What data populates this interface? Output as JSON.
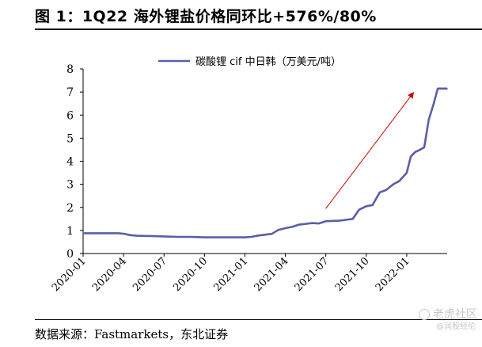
{
  "figure": {
    "title": "图 1：1Q22 海外锂盐价格同环比+576%/80%",
    "source": "数据来源：Fastmarkets，东北证券",
    "watermark": "老虎社区",
    "watermark_sub": "@润股经伦"
  },
  "colors": {
    "series_line": "#5b5ea6",
    "arrow": "#cc0000",
    "axis": "#000000"
  },
  "chart_data": {
    "type": "line",
    "title": "",
    "xlabel": "",
    "ylabel": "",
    "ylim": [
      0,
      8
    ],
    "yticks": [
      "0",
      "1",
      "2",
      "3",
      "4",
      "5",
      "6",
      "7",
      "8"
    ],
    "xlim": [
      "2020-01",
      "2022-04"
    ],
    "xticks": [
      "2020-01",
      "2020-04",
      "2020-07",
      "2020-10",
      "2021-01",
      "2021-04",
      "2021-07",
      "2021-10",
      "2022-01"
    ],
    "legend": {
      "position": "top-center",
      "label": "碳酸锂 cif 中日韩（万美元/吨）"
    },
    "grid": false,
    "series": [
      {
        "name": "碳酸锂 cif 中日韩（万美元/吨）",
        "x": [
          "2020-01",
          "2020-02",
          "2020-03",
          "2020-03-20",
          "2020-04",
          "2020-04-15",
          "2020-05",
          "2020-06",
          "2020-07",
          "2020-08",
          "2020-09",
          "2020-10",
          "2020-11",
          "2020-12",
          "2021-01",
          "2021-01-15",
          "2021-02",
          "2021-03",
          "2021-03-15",
          "2021-04",
          "2021-04-15",
          "2021-05",
          "2021-06",
          "2021-06-15",
          "2021-07",
          "2021-08",
          "2021-08-15",
          "2021-09",
          "2021-09-15",
          "2021-10",
          "2021-10-15",
          "2021-11",
          "2021-11-15",
          "2021-12",
          "2021-12-15",
          "2022-01",
          "2022-01-10",
          "2022-01-20",
          "2022-02",
          "2022-02-10",
          "2022-02-20",
          "2022-03",
          "2022-03-10",
          "2022-03-20",
          "2022-04"
        ],
        "y": [
          0.88,
          0.88,
          0.88,
          0.88,
          0.86,
          0.8,
          0.77,
          0.76,
          0.74,
          0.72,
          0.72,
          0.7,
          0.7,
          0.7,
          0.7,
          0.72,
          0.78,
          0.85,
          1.02,
          1.1,
          1.15,
          1.25,
          1.32,
          1.3,
          1.4,
          1.42,
          1.46,
          1.5,
          1.9,
          2.05,
          2.1,
          2.65,
          2.75,
          3.0,
          3.15,
          3.5,
          4.2,
          4.4,
          4.5,
          4.6,
          5.8,
          6.5,
          7.15,
          7.15,
          7.15
        ]
      }
    ],
    "annotations": [
      {
        "type": "arrow",
        "from": [
          "2021-07",
          1.95
        ],
        "to": [
          "2022-01-15",
          6.95
        ]
      }
    ]
  }
}
